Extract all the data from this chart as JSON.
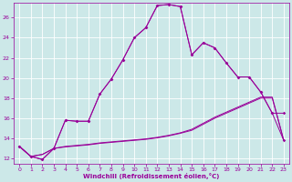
{
  "xlabel": "Windchill (Refroidissement éolien,°C)",
  "bg_color": "#cce8e8",
  "grid_color": "#aacccc",
  "line_color": "#990099",
  "xlim": [
    -0.5,
    23.5
  ],
  "ylim": [
    11.5,
    27.5
  ],
  "xticks": [
    0,
    1,
    2,
    3,
    4,
    5,
    6,
    7,
    8,
    9,
    10,
    11,
    12,
    13,
    14,
    15,
    16,
    17,
    18,
    19,
    20,
    21,
    22,
    23
  ],
  "yticks": [
    12,
    14,
    16,
    18,
    20,
    22,
    24,
    26
  ],
  "curve1_x": [
    0,
    1,
    2,
    3,
    4,
    5,
    6,
    7,
    8,
    9,
    10,
    11,
    12,
    13,
    14,
    15,
    16,
    17,
    18,
    19,
    20,
    21,
    22,
    23
  ],
  "curve1_y": [
    13.2,
    12.2,
    11.9,
    13.0,
    15.8,
    15.7,
    15.7,
    18.4,
    19.9,
    21.8,
    24.0,
    25.0,
    27.2,
    27.3,
    27.1,
    22.3,
    23.5,
    23.0,
    21.5,
    20.1,
    20.1,
    18.6,
    16.5,
    16.5
  ],
  "curve2_x": [
    0,
    1,
    2,
    3,
    4,
    5,
    6,
    7,
    8,
    9,
    10,
    11,
    12,
    13,
    14,
    15,
    16,
    17,
    18,
    19,
    20,
    21,
    22,
    23
  ],
  "curve2_y": [
    13.2,
    12.2,
    11.9,
    13.0,
    15.8,
    15.7,
    15.7,
    18.4,
    19.9,
    21.8,
    24.0,
    25.0,
    27.2,
    27.3,
    27.1,
    22.3,
    23.5,
    23.0,
    21.5,
    20.1,
    20.1,
    18.6,
    16.5,
    13.8
  ],
  "curve3_x": [
    0,
    1,
    2,
    3,
    4,
    5,
    6,
    7,
    8,
    9,
    10,
    11,
    12,
    13,
    14,
    15,
    16,
    17,
    18,
    19,
    20,
    21,
    22,
    23
  ],
  "curve3_y": [
    13.2,
    12.2,
    12.4,
    13.0,
    13.2,
    13.3,
    13.4,
    13.55,
    13.65,
    13.75,
    13.85,
    13.95,
    14.1,
    14.3,
    14.55,
    14.9,
    15.5,
    16.1,
    16.6,
    17.1,
    17.6,
    18.1,
    18.1,
    13.8
  ],
  "curve4_x": [
    0,
    1,
    2,
    3,
    4,
    5,
    6,
    7,
    8,
    9,
    10,
    11,
    12,
    13,
    14,
    15,
    16,
    17,
    18,
    19,
    20,
    21,
    22,
    23
  ],
  "curve4_y": [
    13.2,
    12.2,
    12.4,
    13.0,
    13.15,
    13.25,
    13.35,
    13.5,
    13.6,
    13.7,
    13.8,
    13.9,
    14.05,
    14.25,
    14.5,
    14.8,
    15.4,
    16.0,
    16.5,
    17.0,
    17.5,
    18.0,
    18.0,
    13.8
  ]
}
